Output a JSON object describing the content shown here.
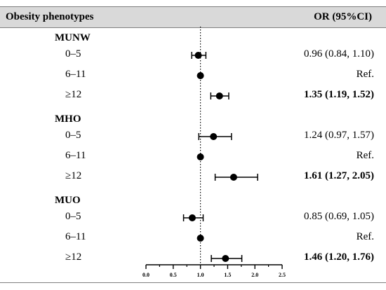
{
  "header": {
    "left_title": "Obesity phenotypes",
    "right_title": "OR (95%CI)"
  },
  "chart_data": {
    "type": "forest",
    "reference_line": 1.0,
    "xlim": [
      0,
      2.5
    ],
    "xticks": [
      "0.0",
      "0.5",
      "1.0",
      "1.5",
      "2.0",
      "2.5"
    ],
    "xtick_values": [
      0,
      0.5,
      1.0,
      1.5,
      2.0,
      2.5
    ],
    "groups": [
      {
        "label": "MUNW",
        "rows": [
          {
            "category": "0–5",
            "or": 0.96,
            "lower": 0.84,
            "upper": 1.1,
            "text": "0.96 (0.84, 1.10)",
            "bold": false,
            "reference": false
          },
          {
            "category": "6–11",
            "or": 1.0,
            "lower": null,
            "upper": null,
            "text": "Ref.",
            "bold": false,
            "reference": true
          },
          {
            "category": "≥12",
            "or": 1.35,
            "lower": 1.19,
            "upper": 1.52,
            "text": "1.35 (1.19, 1.52)",
            "bold": true,
            "reference": false
          }
        ]
      },
      {
        "label": "MHO",
        "rows": [
          {
            "category": "0–5",
            "or": 1.24,
            "lower": 0.97,
            "upper": 1.57,
            "text": "1.24 (0.97, 1.57)",
            "bold": false,
            "reference": false
          },
          {
            "category": "6–11",
            "or": 1.0,
            "lower": null,
            "upper": null,
            "text": "Ref.",
            "bold": false,
            "reference": true
          },
          {
            "category": "≥12",
            "or": 1.61,
            "lower": 1.27,
            "upper": 2.05,
            "text": "1.61 (1.27, 2.05)",
            "bold": true,
            "reference": false
          }
        ]
      },
      {
        "label": "MUO",
        "rows": [
          {
            "category": "0–5",
            "or": 0.85,
            "lower": 0.69,
            "upper": 1.05,
            "text": "0.85 (0.69, 1.05)",
            "bold": false,
            "reference": false
          },
          {
            "category": "6–11",
            "or": 1.0,
            "lower": null,
            "upper": null,
            "text": "Ref.",
            "bold": false,
            "reference": true
          },
          {
            "category": "≥12",
            "or": 1.46,
            "lower": 1.2,
            "upper": 1.76,
            "text": "1.46 (1.20, 1.76)",
            "bold": true,
            "reference": false
          }
        ]
      }
    ]
  }
}
